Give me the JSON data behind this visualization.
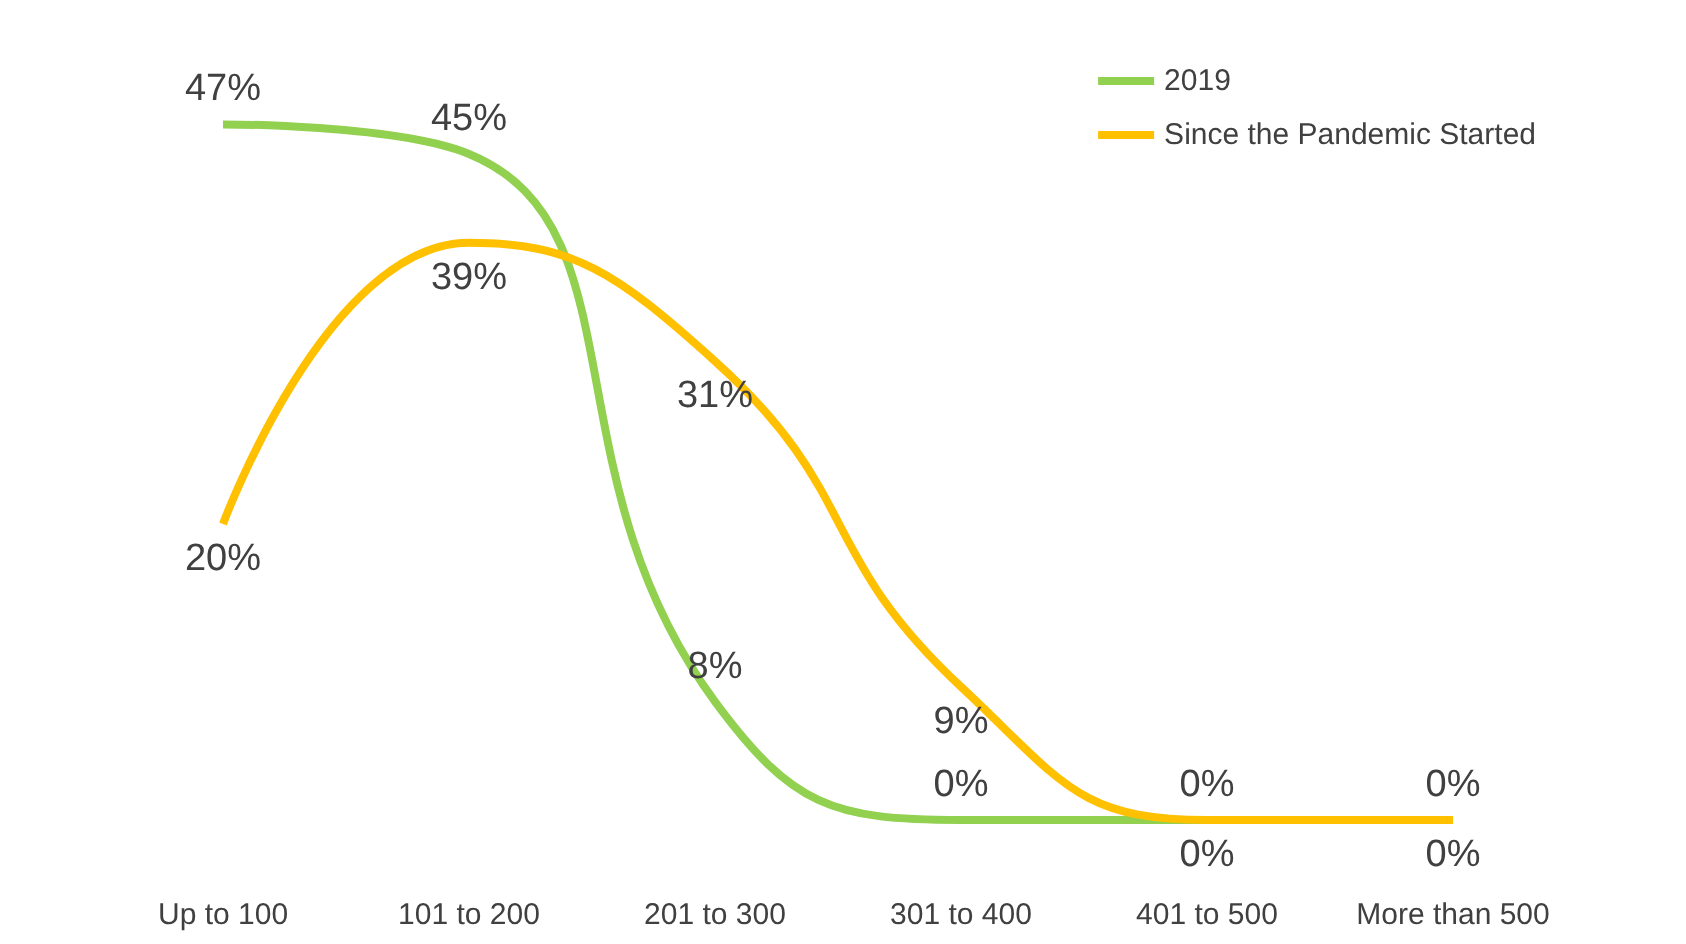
{
  "chart_data": {
    "type": "line",
    "categories": [
      "Up to 100",
      "101 to 200",
      "201 to 300",
      "301 to 400",
      "401 to 500",
      "More than 500"
    ],
    "series": [
      {
        "name": "2019",
        "color": "#92d050",
        "values": [
          47,
          45,
          8,
          0,
          0,
          0
        ],
        "value_labels": [
          "47%",
          "45%",
          "8%",
          "0%",
          "0%",
          "0%"
        ]
      },
      {
        "name": "Since the Pandemic Started",
        "color": "#ffc000",
        "values": [
          20,
          39,
          31,
          9,
          0,
          0
        ],
        "value_labels": [
          "20%",
          "39%",
          "31%",
          "9%",
          "0%",
          "0%"
        ]
      }
    ],
    "legend": "top right",
    "marker": "none",
    "tick_labels": "x",
    "grid": false
  }
}
